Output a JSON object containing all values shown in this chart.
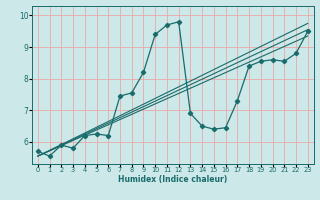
{
  "xlabel": "Humidex (Indice chaleur)",
  "bg_color": "#cce8e8",
  "grid_color": "#e8a8a8",
  "line_color": "#1a6b6b",
  "xlim": [
    -0.5,
    23.5
  ],
  "ylim": [
    5.3,
    10.3
  ],
  "xticks": [
    0,
    1,
    2,
    3,
    4,
    5,
    6,
    7,
    8,
    9,
    10,
    11,
    12,
    13,
    14,
    15,
    16,
    17,
    18,
    19,
    20,
    21,
    22,
    23
  ],
  "yticks": [
    6,
    7,
    8,
    9,
    10
  ],
  "main_series": {
    "x": [
      0,
      1,
      2,
      3,
      4,
      5,
      6,
      7,
      8,
      9,
      10,
      11,
      12,
      13,
      14,
      15,
      16,
      17,
      18,
      19,
      20,
      21,
      22,
      23
    ],
    "y": [
      5.7,
      5.55,
      5.9,
      5.8,
      6.2,
      6.25,
      6.2,
      7.45,
      7.55,
      8.2,
      9.4,
      9.7,
      9.8,
      6.9,
      6.5,
      6.4,
      6.45,
      7.3,
      8.4,
      8.55,
      8.6,
      8.55,
      8.8,
      9.5
    ]
  },
  "straight_lines": [
    {
      "x": [
        0,
        23
      ],
      "y": [
        5.55,
        9.35
      ]
    },
    {
      "x": [
        0,
        23
      ],
      "y": [
        5.55,
        9.55
      ]
    },
    {
      "x": [
        0,
        23
      ],
      "y": [
        5.55,
        9.75
      ]
    }
  ]
}
